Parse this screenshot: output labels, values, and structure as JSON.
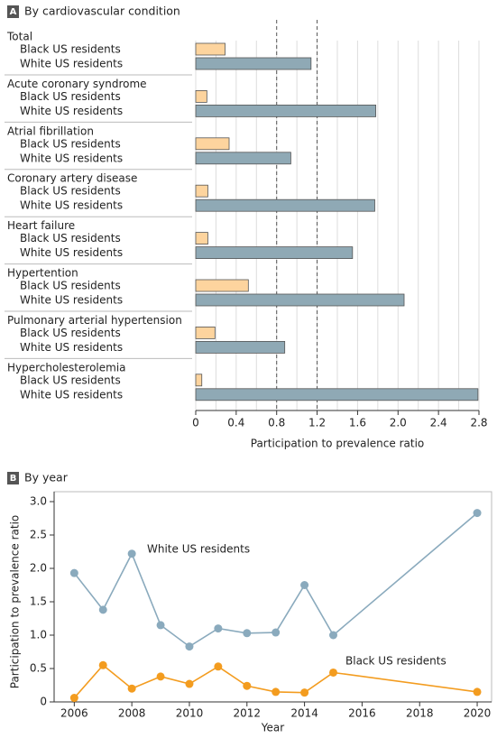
{
  "chart_data": [
    {
      "type": "bar",
      "orientation": "horizontal",
      "panel": "A",
      "title": "By cardiovascular condition",
      "categories": [
        "Total",
        "Acute coronary syndrome",
        "Atrial fibrillation",
        "Coronary artery disease",
        "Heart failure",
        "Hypertention",
        "Pulmonary arterial hypertension",
        "Hypercholesterolemia"
      ],
      "series": [
        {
          "name": "Black US residents",
          "color": "#fdd49e",
          "values": [
            0.29,
            0.11,
            0.33,
            0.12,
            0.12,
            0.52,
            0.19,
            0.06
          ]
        },
        {
          "name": "White US residents",
          "color": "#8fa9b5",
          "values": [
            1.14,
            1.78,
            0.94,
            1.77,
            1.55,
            2.06,
            0.88,
            2.79
          ]
        }
      ],
      "xlabel": "Participation to prevalence ratio",
      "xlim": [
        0,
        2.8
      ],
      "xticks": [
        0,
        0.4,
        0.8,
        1.2,
        1.6,
        {
          "value": 2.0,
          "label": "2.0"
        },
        2.4,
        2.8
      ],
      "minor_xticks": [
        0.2,
        0.6,
        1.0,
        1.4,
        1.8,
        2.2,
        2.6
      ],
      "reference_lines": [
        0.8,
        1.2
      ],
      "grid": true
    },
    {
      "type": "line",
      "panel": "B",
      "title": "By year",
      "x": [
        2006,
        2007,
        2008,
        2009,
        2010,
        2011,
        2012,
        2013,
        2014,
        2015,
        2020
      ],
      "series": [
        {
          "name": "White US residents",
          "color": "#8aaabd",
          "values": [
            1.93,
            1.38,
            2.22,
            1.15,
            0.83,
            1.1,
            1.03,
            1.04,
            1.75,
            1.0,
            2.83
          ]
        },
        {
          "name": "Black US residents",
          "color": "#f39c1f",
          "values": [
            0.06,
            0.55,
            0.2,
            0.38,
            0.27,
            0.53,
            0.24,
            0.15,
            0.14,
            0.44,
            0.15
          ]
        }
      ],
      "xlabel": "Year",
      "ylabel": "Participation to prevalence ratio",
      "xlim": [
        2005.3,
        2020.5
      ],
      "xticks": [
        2006,
        2008,
        2010,
        2012,
        2014,
        2016,
        2018,
        2020
      ],
      "ylim": [
        0,
        3
      ],
      "yticks": [
        0,
        0.5,
        {
          "value": 1.0,
          "label": "1.0"
        },
        1.5,
        {
          "value": 2.0,
          "label": "2.0"
        },
        2.5,
        {
          "value": 3.0,
          "label": "3.0"
        }
      ]
    }
  ]
}
